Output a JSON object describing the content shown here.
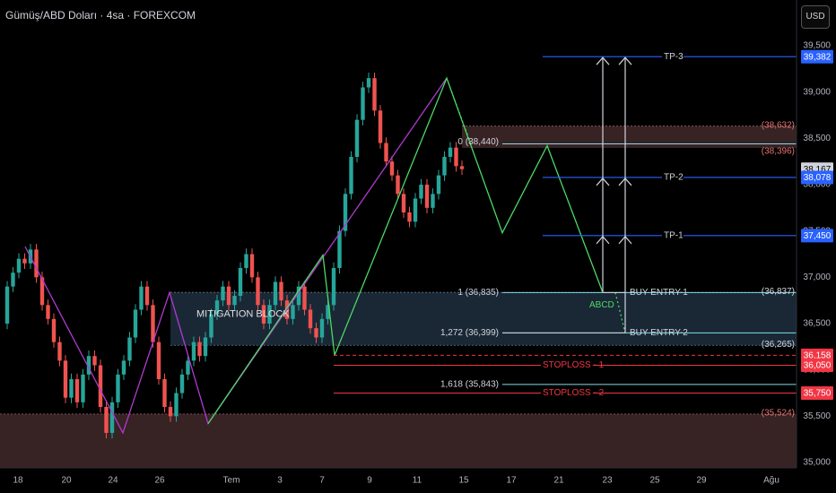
{
  "header": {
    "title": "Gümüş/ABD Doları · 4sa · FOREXCOM",
    "currency_button": "USD"
  },
  "chart_data": {
    "type": "candlestick",
    "title": "Gümüş/ABD Doları · 4sa · FOREXCOM",
    "ylim": [
      35000,
      39700
    ],
    "y_ticks": [
      {
        "v": 35000,
        "t": "35,000"
      },
      {
        "v": 35500,
        "t": "35,500"
      },
      {
        "v": 36000,
        "t": "36,000"
      },
      {
        "v": 36500,
        "t": "36,500"
      },
      {
        "v": 37000,
        "t": "37,000"
      },
      {
        "v": 37500,
        "t": "37,500"
      },
      {
        "v": 38000,
        "t": "38,000"
      },
      {
        "v": 38500,
        "t": "38,500"
      },
      {
        "v": 39000,
        "t": "39,000"
      },
      {
        "v": 39500,
        "t": "39,500"
      }
    ],
    "x_ticks": [
      {
        "i": 2,
        "t": "18"
      },
      {
        "i": 9,
        "t": "20"
      },
      {
        "i": 16,
        "t": "24"
      },
      {
        "i": 23,
        "t": "26"
      },
      {
        "i": 33,
        "t": "Tem"
      },
      {
        "i": 40,
        "t": "3"
      },
      {
        "i": 46,
        "t": "7"
      },
      {
        "i": 53,
        "t": "9"
      },
      {
        "i": 59,
        "t": "11"
      },
      {
        "i": 66,
        "t": "15"
      },
      {
        "i": 73,
        "t": "17"
      },
      {
        "i": 80,
        "t": "21"
      },
      {
        "i": 87,
        "t": "23"
      },
      {
        "i": 94,
        "t": "25"
      },
      {
        "i": 100,
        "t": "29"
      },
      {
        "i": 110,
        "t": "Ağu"
      }
    ],
    "candles": [
      [
        36500,
        36900
      ],
      [
        36900,
        37050
      ],
      [
        37050,
        37200
      ],
      [
        37200,
        37150
      ],
      [
        37150,
        37300
      ],
      [
        37300,
        37000
      ],
      [
        37000,
        36700
      ],
      [
        36700,
        36550
      ],
      [
        36550,
        36300
      ],
      [
        36300,
        36100
      ],
      [
        36100,
        35700
      ],
      [
        35700,
        35900
      ],
      [
        35900,
        35650
      ],
      [
        35650,
        35950
      ],
      [
        35950,
        36150
      ],
      [
        36150,
        36050
      ],
      [
        36050,
        35600
      ],
      [
        35600,
        35320
      ],
      [
        35320,
        35650
      ],
      [
        35650,
        35950
      ],
      [
        35950,
        36100
      ],
      [
        36100,
        36350
      ],
      [
        36350,
        36650
      ],
      [
        36650,
        36900
      ],
      [
        36900,
        36700
      ],
      [
        36700,
        36300
      ],
      [
        36300,
        35900
      ],
      [
        35900,
        35600
      ],
      [
        35600,
        35500
      ],
      [
        35500,
        35750
      ],
      [
        35750,
        35950
      ],
      [
        35950,
        36100
      ],
      [
        36100,
        36300
      ],
      [
        36300,
        36150
      ],
      [
        36150,
        36350
      ],
      [
        36350,
        36600
      ],
      [
        36600,
        36750
      ],
      [
        36750,
        36900
      ],
      [
        36900,
        36700
      ],
      [
        36700,
        36800
      ],
      [
        36800,
        37100
      ],
      [
        37100,
        37250
      ],
      [
        37250,
        37000
      ],
      [
        37000,
        36700
      ],
      [
        36700,
        36500
      ],
      [
        36500,
        36700
      ],
      [
        36700,
        36950
      ],
      [
        36950,
        36750
      ],
      [
        36750,
        36550
      ],
      [
        36550,
        36700
      ],
      [
        36700,
        36900
      ],
      [
        36900,
        36650
      ],
      [
        36650,
        36450
      ],
      [
        36450,
        36350
      ],
      [
        36350,
        36550
      ],
      [
        36550,
        36700
      ],
      [
        36700,
        37100
      ],
      [
        37100,
        37500
      ],
      [
        37500,
        37900
      ],
      [
        37900,
        38300
      ],
      [
        38300,
        38700
      ],
      [
        38700,
        39050
      ],
      [
        39050,
        39150
      ],
      [
        39150,
        38800
      ],
      [
        38800,
        38450
      ],
      [
        38450,
        38250
      ],
      [
        38250,
        38100
      ],
      [
        38100,
        37900
      ],
      [
        37900,
        37700
      ],
      [
        37700,
        37600
      ],
      [
        37600,
        37850
      ],
      [
        37850,
        38000
      ],
      [
        38000,
        37750
      ],
      [
        37750,
        37900
      ],
      [
        37900,
        38100
      ],
      [
        38100,
        38300
      ],
      [
        38300,
        38400
      ],
      [
        38400,
        38200
      ],
      [
        38200,
        38167
      ]
    ],
    "annotations": {
      "pattern_label": "ABCD",
      "zone_label": "MITIGATION BLOCK",
      "fib_labels": [
        "0 (38,440)",
        "1 (36,835)",
        "1,272 (36,399)",
        "1,618 (35,843)"
      ],
      "level_labels": [
        "TP-3",
        "TP-2",
        "TP-1",
        "BUY ENTRY-1",
        "BUY ENTRY-2",
        "STOPLOSS - 1",
        "STOPLOSS - 2"
      ],
      "price_markers": [
        {
          "text": "39,382",
          "v": 39382,
          "kind": "blue"
        },
        {
          "text": "38,167",
          "v": 38167,
          "kind": "gray"
        },
        {
          "text": "38,078",
          "v": 38078,
          "kind": "blue"
        },
        {
          "text": "37,450",
          "v": 37450,
          "kind": "blue"
        },
        {
          "text": "36,158",
          "v": 36158,
          "kind": "red"
        },
        {
          "text": "36,050",
          "v": 36050,
          "kind": "red"
        },
        {
          "text": "35,750",
          "v": 35750,
          "kind": "red"
        }
      ],
      "zone_values": [
        "(38,632)",
        "(38,396)",
        "(36,837)",
        "(36,265)",
        "(35,524)"
      ]
    },
    "colors": {
      "up": "#26a69a",
      "down": "#ef5350",
      "tp": "#2962ff",
      "fib": "#80deea",
      "stop": "#f23645",
      "zigzag_purple": "#b03ad0",
      "zigzag_green": "#4cd964",
      "zone_blue": "#1e2f3f",
      "zone_brown": "#3d2628"
    }
  }
}
